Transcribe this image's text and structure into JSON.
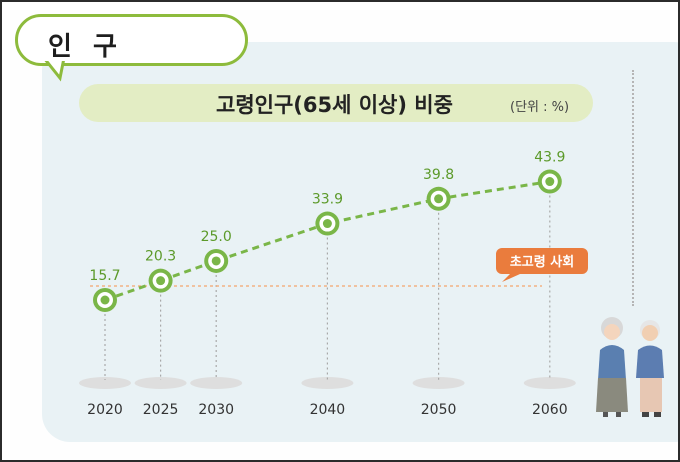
{
  "section": {
    "title": "인 구"
  },
  "chart_data": {
    "type": "line",
    "title": "고령인구(65세 이상) 비중",
    "unit": "(단위 : %)",
    "x": [
      "2020",
      "2025",
      "2030",
      "2040",
      "2050",
      "2060"
    ],
    "values": [
      15.7,
      20.3,
      25.0,
      33.9,
      39.8,
      43.9
    ],
    "value_labels": [
      "15.7",
      "20.3",
      "25.0",
      "33.9",
      "39.8",
      "43.9"
    ],
    "threshold": {
      "value": 20,
      "label": "초고령 사회"
    },
    "colors": {
      "line": "#7ab648",
      "marker_ring": "#7ab648",
      "threshold_line": "#f3b184",
      "threshold_badge": "#ea7c3d",
      "title_bar": "#e3edc4",
      "panel": "#e9f2f5"
    },
    "grid": false,
    "legend": "none"
  },
  "illustration": {
    "icon": "elderly-couple-icon"
  }
}
